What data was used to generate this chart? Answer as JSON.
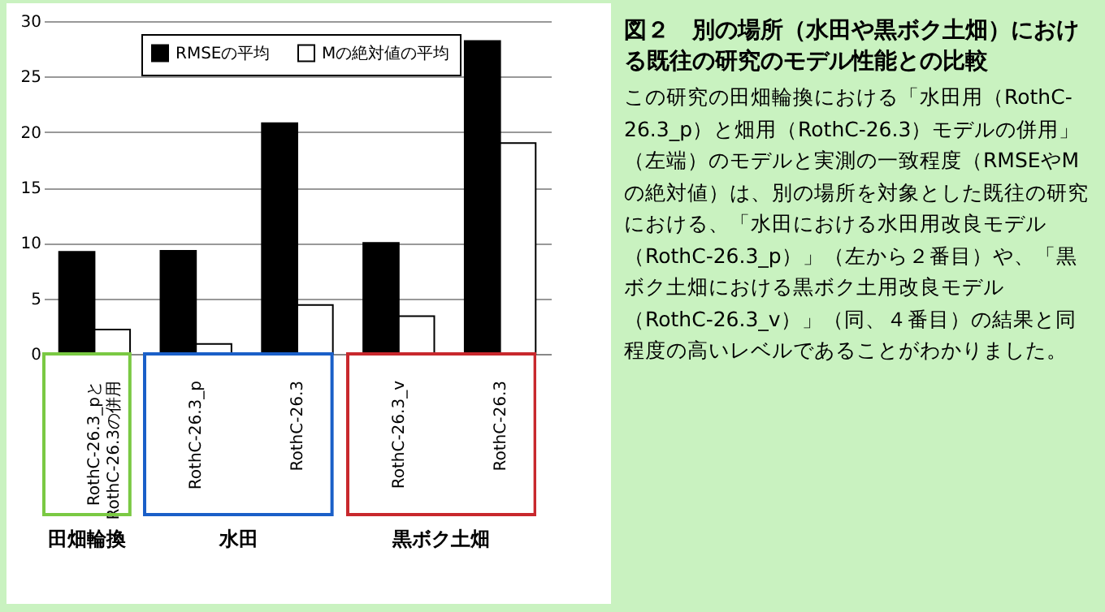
{
  "chart_data": {
    "type": "bar",
    "title": "図２　別の場所（水田や黒ボク土畑）における既往の研究のモデル性能との比較",
    "subtitle": "この研究の田畑輪換における「水田用（RothC-26.3_p）と畑用（RothC-26.3）モデルの併用」（左端）のモデルと実測の一致程度（RMSEやMの絶対値）は、別の場所を対象とした既往の研究における、「水田における水田用改良モデル（RothC-26.3_p）」（左から２番目）や、「黒ボク土畑における黒ボク土用改良モデル（RothC-26.3_v）」（同、４番目）の結果と同程度の高いレベルであることがわかりました。",
    "categories": [
      "RothC-26.3_pと\nRothC-26.3の併用",
      "RothC-26.3_p",
      "RothC-26.3",
      "RothC-26.3_v",
      "RothC-26.3"
    ],
    "annotations": [
      "田畑輪換",
      "水田",
      "黒ボク土畑"
    ],
    "series": [
      {
        "name": "RMSEの平均",
        "color": "#000000",
        "values": [
          9.2,
          9.3,
          20.8,
          10.0,
          28.2
        ]
      },
      {
        "name": "Mの絶対値の平均",
        "color": "#ffffff",
        "values": [
          2.2,
          0.9,
          4.4,
          3.4,
          19.0
        ]
      }
    ],
    "ylim": [
      0,
      30
    ],
    "yticks": [
      0,
      5,
      10,
      15,
      20,
      25,
      30
    ],
    "grid": "y",
    "legend": "top"
  }
}
